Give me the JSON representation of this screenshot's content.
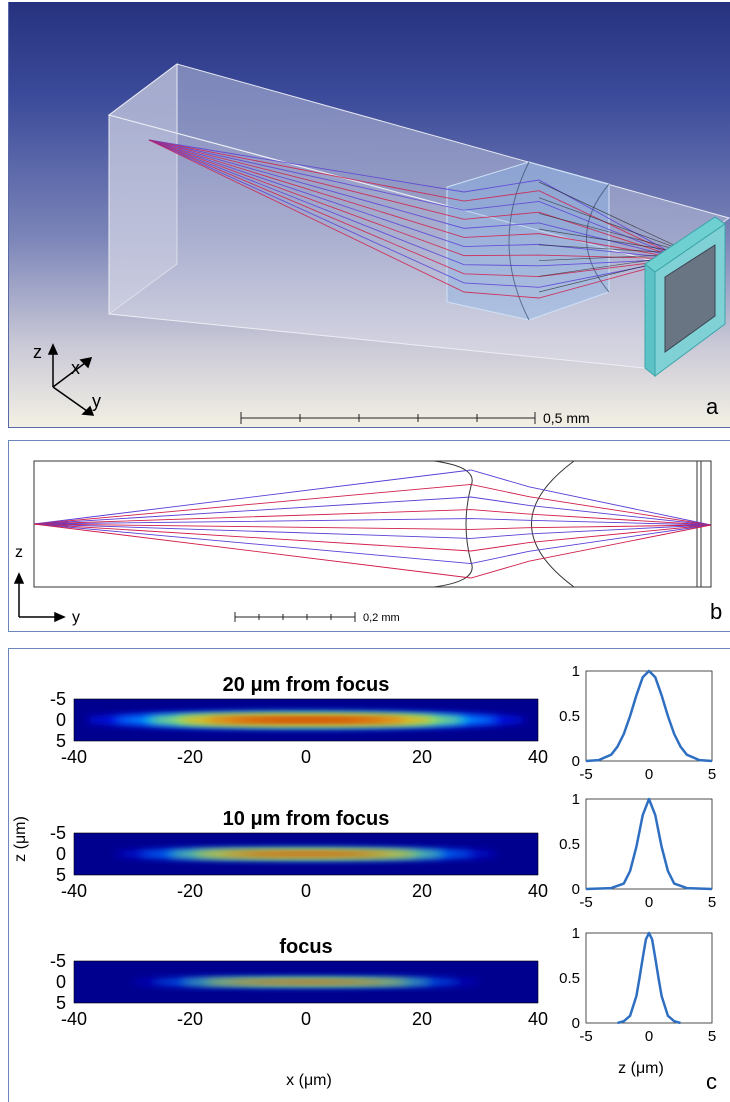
{
  "panel_a": {
    "letter": "a",
    "axis_z": "z",
    "axis_x": "x",
    "axis_y": "y",
    "scale_label": "0,5 mm"
  },
  "panel_b": {
    "letter": "b",
    "axis_z": "z",
    "axis_y": "y",
    "scale_label": "0,2 mm"
  },
  "panel_c": {
    "letter": "c",
    "ylabel": "z (μm)",
    "xlabel": "x (μm)",
    "profile_xlabel": "z (μm)"
  },
  "colors": {
    "ray_red": "#d11f4a",
    "ray_blue": "#5a3fd6",
    "profile_line": "#2f6fc1",
    "glass_face": "#7fd1d6"
  },
  "chart_data": [
    {
      "type": "heatmap",
      "title": "20 μm from focus",
      "x_range": [
        -40,
        40
      ],
      "x_ticks": [
        "-40",
        "-20",
        "0",
        "20",
        "40"
      ],
      "y_range": [
        -5,
        5
      ],
      "y_ticks": [
        "-5",
        "0",
        "5"
      ],
      "colormap": "jet",
      "beam_half_width_x": 38,
      "beam_half_width_z": 1.8
    },
    {
      "type": "line",
      "x": [
        -5,
        -4,
        -3,
        -2.5,
        -2,
        -1.5,
        -1,
        -0.5,
        0,
        0.5,
        1,
        1.5,
        2,
        2.5,
        3,
        4,
        5
      ],
      "values": [
        0,
        0.01,
        0.07,
        0.16,
        0.3,
        0.5,
        0.73,
        0.93,
        1,
        0.93,
        0.73,
        0.5,
        0.3,
        0.16,
        0.07,
        0.01,
        0
      ],
      "x_ticks": [
        "-5",
        "0",
        "5"
      ],
      "y_ticks": [
        "0",
        "0.5",
        "1"
      ],
      "xlim": [
        -5,
        5
      ],
      "ylim": [
        0,
        1
      ]
    },
    {
      "type": "heatmap",
      "title": "10 μm from focus",
      "x_range": [
        -40,
        40
      ],
      "x_ticks": [
        "-40",
        "-20",
        "0",
        "20",
        "40"
      ],
      "y_range": [
        -5,
        5
      ],
      "y_ticks": [
        "-5",
        "0",
        "5"
      ],
      "colormap": "jet",
      "beam_half_width_x": 33,
      "beam_half_width_z": 1.1
    },
    {
      "type": "line",
      "x": [
        -5,
        -3,
        -2,
        -1.5,
        -1,
        -0.5,
        0,
        0.5,
        1,
        1.5,
        2,
        3,
        5
      ],
      "values": [
        0,
        0.01,
        0.06,
        0.2,
        0.47,
        0.82,
        1,
        0.82,
        0.47,
        0.2,
        0.06,
        0.01,
        0
      ],
      "x_ticks": [
        "-5",
        "0",
        "5"
      ],
      "y_ticks": [
        "0",
        "0.5",
        "1"
      ],
      "xlim": [
        -5,
        5
      ],
      "ylim": [
        0,
        1
      ]
    },
    {
      "type": "heatmap",
      "title": "focus",
      "x_range": [
        -40,
        40
      ],
      "x_ticks": [
        "-40",
        "-20",
        "0",
        "20",
        "40"
      ],
      "y_range": [
        -5,
        5
      ],
      "y_ticks": [
        "-5",
        "0",
        "5"
      ],
      "colormap": "jet",
      "beam_half_width_x": 30,
      "beam_half_width_z": 0.7
    },
    {
      "type": "line",
      "x": [
        -2.5,
        -2,
        -1.5,
        -1,
        -0.75,
        -0.5,
        -0.25,
        0,
        0.25,
        0.5,
        0.75,
        1,
        1.5,
        2,
        2.5
      ],
      "values": [
        0,
        0.02,
        0.08,
        0.3,
        0.5,
        0.72,
        0.93,
        1,
        0.93,
        0.72,
        0.5,
        0.3,
        0.08,
        0.02,
        0
      ],
      "x_ticks": [
        "-5",
        "0",
        "5"
      ],
      "y_ticks": [
        "0",
        "0.5",
        "1"
      ],
      "xlim": [
        -5,
        5
      ],
      "ylim": [
        0,
        1
      ]
    }
  ]
}
